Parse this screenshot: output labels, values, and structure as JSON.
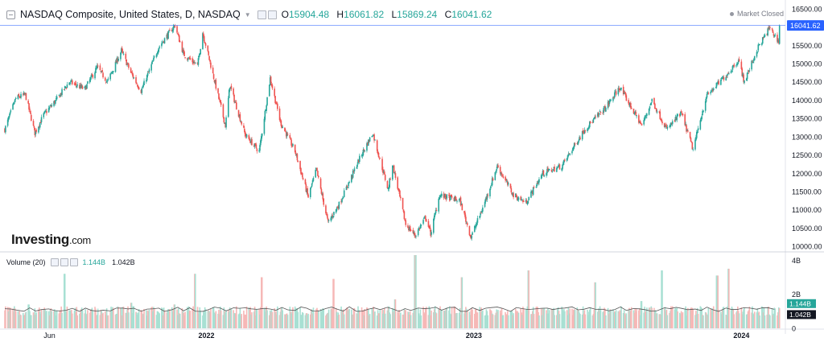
{
  "header": {
    "title": "NASDAQ Composite, United States, D, NASDAQ",
    "open_label": "O",
    "open": "15904.48",
    "high_label": "H",
    "high": "16061.82",
    "low_label": "L",
    "low": "15869.24",
    "close_label": "C",
    "close": "16041.62"
  },
  "status": "Market Closed",
  "logo": {
    "main": "Investing",
    "suffix": ".com"
  },
  "volume_header": {
    "label": "Volume (20)",
    "value1": "1.144B",
    "value2": "1.042B"
  },
  "colors": {
    "up": "#26a69a",
    "down": "#ef5350",
    "vol_up": "#a8e0d3",
    "vol_down": "#f6b8b7",
    "price_line": "#2962ff",
    "ma": "#555555"
  },
  "chart_data": [
    {
      "type": "line",
      "title": "NASDAQ Composite, United States, D, NASDAQ",
      "y_axis_side": "right",
      "y_ticks": [
        "16500.00",
        "16000.00",
        "15500.00",
        "15000.00",
        "14500.00",
        "14000.00",
        "13500.00",
        "13000.00",
        "12500.00",
        "12000.00",
        "11500.00",
        "11000.00",
        "10500.00",
        "10000.00"
      ],
      "ylim": [
        9850,
        16650
      ],
      "x_ticks": [
        {
          "label": "Jun",
          "date": "2021-06-01"
        },
        {
          "label": "2022",
          "date": "2022-01-01"
        },
        {
          "label": "2023",
          "date": "2023-01-01"
        },
        {
          "label": "2024",
          "date": "2024-01-01"
        }
      ],
      "xlim": [
        "2021-04-01",
        "2024-03-01"
      ],
      "last_price": "16041.62",
      "series": [
        {
          "values": [
            {
              "x": "2021-04-01",
              "y": 13200
            },
            {
              "x": "2021-04-16",
              "y": 14050
            },
            {
              "x": "2021-04-29",
              "y": 14150
            },
            {
              "x": "2021-05-12",
              "y": 13100
            },
            {
              "x": "2021-05-24",
              "y": 13600
            },
            {
              "x": "2021-06-10",
              "y": 14000
            },
            {
              "x": "2021-06-28",
              "y": 14500
            },
            {
              "x": "2021-07-19",
              "y": 14300
            },
            {
              "x": "2021-08-05",
              "y": 14900
            },
            {
              "x": "2021-08-19",
              "y": 14500
            },
            {
              "x": "2021-09-07",
              "y": 15350
            },
            {
              "x": "2021-09-20",
              "y": 14750
            },
            {
              "x": "2021-10-04",
              "y": 14250
            },
            {
              "x": "2021-10-28",
              "y": 15450
            },
            {
              "x": "2021-11-19",
              "y": 16050
            },
            {
              "x": "2021-12-01",
              "y": 15250
            },
            {
              "x": "2021-12-20",
              "y": 14950
            },
            {
              "x": "2021-12-27",
              "y": 15850
            },
            {
              "x": "2022-01-07",
              "y": 14950
            },
            {
              "x": "2022-01-27",
              "y": 13300
            },
            {
              "x": "2022-02-02",
              "y": 14400
            },
            {
              "x": "2022-02-23",
              "y": 13050
            },
            {
              "x": "2022-03-14",
              "y": 12600
            },
            {
              "x": "2022-03-29",
              "y": 14600
            },
            {
              "x": "2022-04-12",
              "y": 13400
            },
            {
              "x": "2022-05-02",
              "y": 12600
            },
            {
              "x": "2022-05-20",
              "y": 11350
            },
            {
              "x": "2022-05-31",
              "y": 12100
            },
            {
              "x": "2022-06-16",
              "y": 10650
            },
            {
              "x": "2022-07-01",
              "y": 11150
            },
            {
              "x": "2022-07-29",
              "y": 12400
            },
            {
              "x": "2022-08-16",
              "y": 13100
            },
            {
              "x": "2022-09-06",
              "y": 11550
            },
            {
              "x": "2022-09-12",
              "y": 12250
            },
            {
              "x": "2022-09-30",
              "y": 10600
            },
            {
              "x": "2022-10-13",
              "y": 10300
            },
            {
              "x": "2022-10-27",
              "y": 10800
            },
            {
              "x": "2022-11-03",
              "y": 10350
            },
            {
              "x": "2022-11-15",
              "y": 11400
            },
            {
              "x": "2022-12-13",
              "y": 11250
            },
            {
              "x": "2022-12-28",
              "y": 10250
            },
            {
              "x": "2023-01-13",
              "y": 11050
            },
            {
              "x": "2023-02-02",
              "y": 12200
            },
            {
              "x": "2023-02-24",
              "y": 11400
            },
            {
              "x": "2023-03-13",
              "y": 11200
            },
            {
              "x": "2023-04-05",
              "y": 12000
            },
            {
              "x": "2023-05-01",
              "y": 12200
            },
            {
              "x": "2023-06-01",
              "y": 13200
            },
            {
              "x": "2023-06-30",
              "y": 13800
            },
            {
              "x": "2023-07-19",
              "y": 14350
            },
            {
              "x": "2023-08-18",
              "y": 13300
            },
            {
              "x": "2023-09-01",
              "y": 14000
            },
            {
              "x": "2023-09-21",
              "y": 13200
            },
            {
              "x": "2023-10-11",
              "y": 13650
            },
            {
              "x": "2023-10-27",
              "y": 12650
            },
            {
              "x": "2023-11-14",
              "y": 14100
            },
            {
              "x": "2023-12-14",
              "y": 14750
            },
            {
              "x": "2023-12-28",
              "y": 15100
            },
            {
              "x": "2024-01-05",
              "y": 14500
            },
            {
              "x": "2024-01-24",
              "y": 15450
            },
            {
              "x": "2024-02-09",
              "y": 15990
            },
            {
              "x": "2024-02-14",
              "y": 15800
            },
            {
              "x": "2024-02-21",
              "y": 15600
            },
            {
              "x": "2024-02-22",
              "y": 16041.62
            }
          ]
        }
      ]
    },
    {
      "type": "bar",
      "title": "Volume (20)",
      "y_ticks": [
        "4B",
        "2B",
        "0"
      ],
      "ylim": [
        0,
        4.3
      ],
      "y_unit": "B",
      "last_values": [
        "1.144B",
        "1.042B"
      ],
      "typical_volume": 1.0,
      "moving_average": 1.1,
      "spikes": [
        {
          "x": "2021-05-03",
          "y": 1.4
        },
        {
          "x": "2021-06-21",
          "y": 3.2
        },
        {
          "x": "2021-09-20",
          "y": 1.5
        },
        {
          "x": "2021-11-19",
          "y": 1.4
        },
        {
          "x": "2021-12-17",
          "y": 3.2
        },
        {
          "x": "2022-03-18",
          "y": 3.0
        },
        {
          "x": "2022-06-24",
          "y": 2.9
        },
        {
          "x": "2022-09-16",
          "y": 1.7
        },
        {
          "x": "2022-10-13",
          "y": 4.3
        },
        {
          "x": "2022-12-16",
          "y": 3.0
        },
        {
          "x": "2023-03-17",
          "y": 3.4
        },
        {
          "x": "2023-06-16",
          "y": 2.7
        },
        {
          "x": "2023-08-18",
          "y": 1.6
        },
        {
          "x": "2023-09-15",
          "y": 3.4
        },
        {
          "x": "2023-11-29",
          "y": 3.1
        },
        {
          "x": "2023-12-15",
          "y": 3.5
        }
      ]
    }
  ]
}
